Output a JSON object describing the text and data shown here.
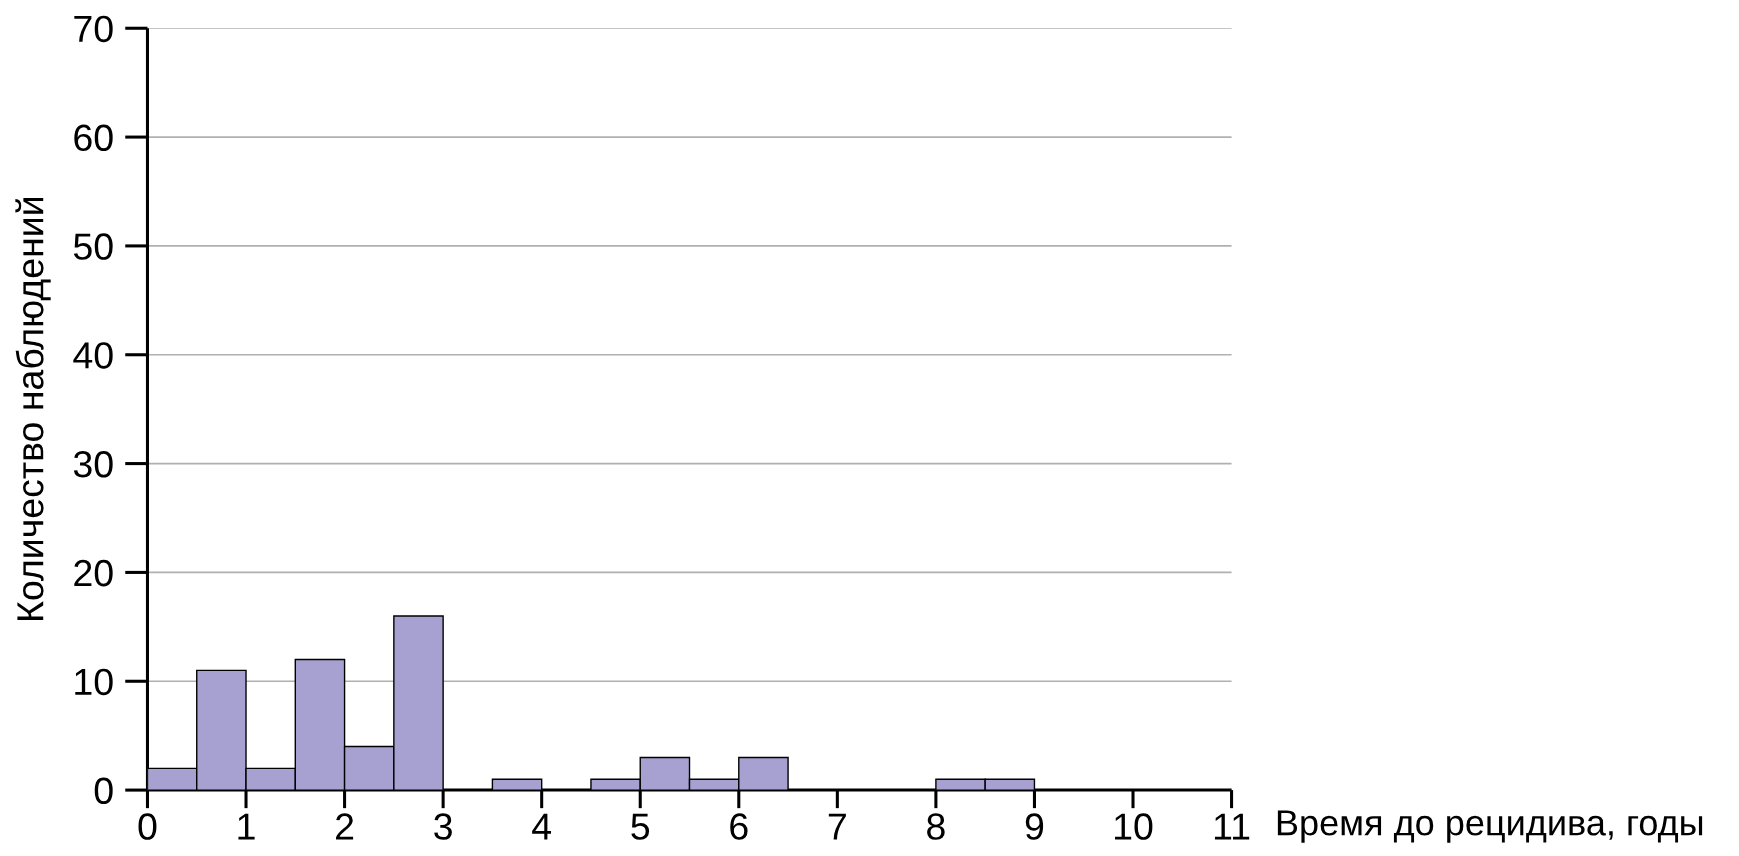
{
  "chart_data": {
    "type": "histogram",
    "xlabel": "Время до рецидива, годы",
    "ylabel": "Количество наблюдений",
    "bins": [
      0,
      0.5,
      1,
      1.5,
      2,
      2.5,
      3,
      3.5,
      4,
      4.5,
      5,
      5.5,
      6,
      6.5,
      7,
      7.5,
      8,
      8.5,
      9
    ],
    "values": [
      2,
      11,
      2,
      12,
      4,
      16,
      0,
      1,
      0,
      1,
      3,
      1,
      3,
      0,
      0,
      0,
      1,
      1
    ],
    "color": "#a6a1d0",
    "xlim": [
      0,
      11
    ],
    "xticks": [
      0,
      1,
      2,
      3,
      4,
      5,
      6,
      7,
      8,
      9,
      10,
      11
    ],
    "ylim": [
      0,
      70
    ],
    "yticks": [
      0,
      10,
      20,
      30,
      40,
      50,
      60,
      70
    ],
    "grid": "y"
  }
}
